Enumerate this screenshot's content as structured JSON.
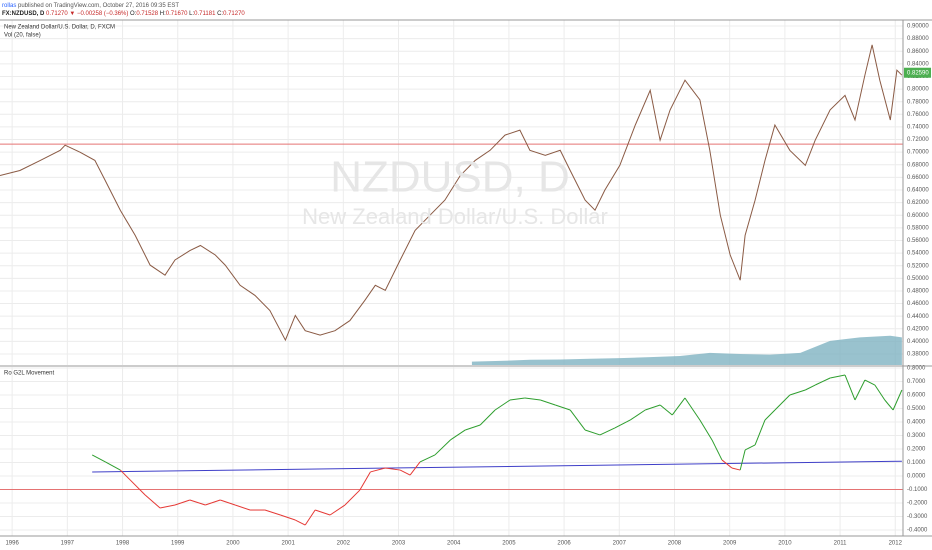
{
  "header": {
    "author": "rollas",
    "published": " published on TradingView.com, October 27, 2016 09:35 EST",
    "symbol": "FX:NZDUSD, D",
    "last": "0.71270",
    "change": "▼ −0.00258 (−0.36%)",
    "ohlc": [
      {
        "label": "O:",
        "value": "0.71528"
      },
      {
        "label": "H:",
        "value": "0.71670"
      },
      {
        "label": "L:",
        "value": "0.71181"
      },
      {
        "label": "C:",
        "value": "0.71270"
      }
    ]
  },
  "watermark": {
    "symbol": "NZDUSD, D",
    "description": "New Zealand Dollar/U.S. Dollar"
  },
  "chart_data": [
    {
      "type": "line",
      "xlim": [
        1995.78,
        2012.14
      ],
      "ylim": [
        0.3626,
        0.9095
      ],
      "yticks": [
        {
          "value": 0.9,
          "label": "0.90000"
        },
        {
          "value": 0.88,
          "label": "0.88000"
        },
        {
          "value": 0.86,
          "label": "0.86000"
        },
        {
          "value": 0.84,
          "label": "0.84000"
        },
        {
          "value": 0.82,
          "label": "0.82000"
        },
        {
          "value": 0.8,
          "label": "0.80000"
        },
        {
          "value": 0.78,
          "label": "0.78000"
        },
        {
          "value": 0.76,
          "label": "0.76000"
        },
        {
          "value": 0.74,
          "label": "0.74000"
        },
        {
          "value": 0.72,
          "label": "0.72000"
        },
        {
          "value": 0.7,
          "label": "0.70000"
        },
        {
          "value": 0.68,
          "label": "0.68000"
        },
        {
          "value": 0.66,
          "label": "0.66000"
        },
        {
          "value": 0.64,
          "label": "0.64000"
        },
        {
          "value": 0.62,
          "label": "0.62000"
        },
        {
          "value": 0.6,
          "label": "0.60000"
        },
        {
          "value": 0.58,
          "label": "0.58000"
        },
        {
          "value": 0.56,
          "label": "0.56000"
        },
        {
          "value": 0.54,
          "label": "0.54000"
        },
        {
          "value": 0.52,
          "label": "0.52000"
        },
        {
          "value": 0.5,
          "label": "0.50000"
        },
        {
          "value": 0.48,
          "label": "0.48000"
        },
        {
          "value": 0.46,
          "label": "0.46000"
        },
        {
          "value": 0.44,
          "label": "0.44000"
        },
        {
          "value": 0.42,
          "label": "0.42000"
        },
        {
          "value": 0.4,
          "label": "0.40000"
        },
        {
          "value": 0.38,
          "label": "0.38000"
        }
      ],
      "grid": true,
      "series": [
        {
          "name": "New Zealand Dollar/U.S. Dollar, D, FXCM",
          "color": "#8a5a44",
          "x": [
            1995.78,
            1996.14,
            1996.51,
            1996.87,
            1996.96,
            1997.23,
            1997.5,
            1997.68,
            1997.96,
            1998.23,
            1998.5,
            1998.77,
            1998.95,
            1999.22,
            1999.41,
            1999.68,
            1999.86,
            2000.13,
            2000.4,
            2000.67,
            2000.95,
            2001.13,
            2001.31,
            2001.58,
            2001.85,
            2002.12,
            2002.39,
            2002.58,
            2002.76,
            2003.03,
            2003.3,
            2003.57,
            2003.84,
            2004.12,
            2004.39,
            2004.66,
            2004.93,
            2005.2,
            2005.38,
            2005.66,
            2005.93,
            2006.11,
            2006.38,
            2006.56,
            2006.74,
            2007.01,
            2007.29,
            2007.56,
            2007.74,
            2007.92,
            2008.19,
            2008.46,
            2008.64,
            2008.83,
            2009.01,
            2009.19,
            2009.28,
            2009.46,
            2009.64,
            2009.82,
            2010.09,
            2010.37,
            2010.55,
            2010.82,
            2011.09,
            2011.27,
            2011.45,
            2011.58,
            2011.72,
            2011.91,
            2012.03,
            2012.12
          ],
          "values": [
            0.663,
            0.671,
            0.687,
            0.703,
            0.711,
            0.7,
            0.687,
            0.656,
            0.608,
            0.568,
            0.521,
            0.505,
            0.529,
            0.544,
            0.552,
            0.537,
            0.521,
            0.489,
            0.473,
            0.449,
            0.402,
            0.441,
            0.417,
            0.41,
            0.417,
            0.433,
            0.465,
            0.489,
            0.481,
            0.529,
            0.576,
            0.6,
            0.624,
            0.663,
            0.687,
            0.703,
            0.727,
            0.735,
            0.703,
            0.695,
            0.703,
            0.671,
            0.624,
            0.608,
            0.64,
            0.679,
            0.743,
            0.798,
            0.719,
            0.767,
            0.814,
            0.783,
            0.703,
            0.6,
            0.537,
            0.497,
            0.568,
            0.624,
            0.687,
            0.743,
            0.703,
            0.679,
            0.719,
            0.767,
            0.79,
            0.751,
            0.822,
            0.87,
            0.814,
            0.751,
            0.83,
            0.822
          ]
        }
      ],
      "volume": {
        "name": "Vol (20, false)",
        "color": "#7fb3c2",
        "ylim": [
          0,
          100
        ],
        "x": [
          2004.33,
          2004.84,
          2005.38,
          2005.93,
          2006.47,
          2007.01,
          2007.56,
          2008.1,
          2008.64,
          2009.19,
          2009.73,
          2010.28,
          2010.82,
          2011.36,
          2011.91,
          2012.12
        ],
        "values": [
          1,
          1.2,
          1.5,
          1.6,
          1.8,
          2,
          2.3,
          2.6,
          3.5,
          3.2,
          3,
          3.5,
          7,
          8,
          8.5,
          8
        ]
      },
      "price_line": {
        "value": 0.7127,
        "color": "#e57373"
      },
      "current_price": {
        "value": 0.8259,
        "label": "0.82590",
        "color": "#4caf50"
      }
    },
    {
      "type": "line",
      "xlim": [
        1995.78,
        2012.14
      ],
      "ylim": [
        -0.4444,
        0.8074
      ],
      "xticks": [
        1996,
        1997,
        1998,
        1999,
        2000,
        2001,
        2002,
        2003,
        2004,
        2005,
        2006,
        2007,
        2008,
        2009,
        2010,
        2011,
        2012
      ],
      "yticks": [
        {
          "value": 0.8,
          "label": "0.8000"
        },
        {
          "value": 0.7,
          "label": "0.7000"
        },
        {
          "value": 0.6,
          "label": "0.6000"
        },
        {
          "value": 0.5,
          "label": "0.5000"
        },
        {
          "value": 0.4,
          "label": "0.4000"
        },
        {
          "value": 0.3,
          "label": "0.3000"
        },
        {
          "value": 0.2,
          "label": "0.2000"
        },
        {
          "value": 0.1,
          "label": "0.1000"
        },
        {
          "value": 0,
          "label": "0.0000"
        },
        {
          "value": -0.1,
          "label": "-0.1000"
        },
        {
          "value": -0.2,
          "label": "-0.2000"
        },
        {
          "value": -0.3,
          "label": "-0.3000"
        },
        {
          "value": -0.4,
          "label": "-0.4000"
        }
      ],
      "grid": true,
      "color_above": "#2e9e2e",
      "color_below": "#e53935",
      "series": [
        {
          "name": "Ro G2L Movement",
          "x": [
            1997.45,
            1997.69,
            1997.96,
            1998.14,
            1998.41,
            1998.68,
            1998.95,
            1999.22,
            1999.5,
            1999.77,
            2000.04,
            2000.31,
            2000.58,
            2000.86,
            2001.13,
            2001.31,
            2001.49,
            2001.76,
            2002.03,
            2002.3,
            2002.49,
            2002.76,
            2003.03,
            2003.21,
            2003.39,
            2003.66,
            2003.94,
            2004.21,
            2004.48,
            2004.75,
            2005.02,
            2005.29,
            2005.57,
            2005.84,
            2006.11,
            2006.38,
            2006.65,
            2006.92,
            2007.2,
            2007.47,
            2007.74,
            2007.96,
            2008.19,
            2008.46,
            2008.68,
            2008.86,
            2009.04,
            2009.19,
            2009.28,
            2009.46,
            2009.64,
            2009.82,
            2010.09,
            2010.37,
            2010.55,
            2010.82,
            2011.09,
            2011.27,
            2011.45,
            2011.63,
            2011.81,
            2011.96,
            2012.12
          ],
          "values": [
            0.156,
            0.104,
            0.044,
            -0.03,
            -0.141,
            -0.237,
            -0.215,
            -0.178,
            -0.215,
            -0.178,
            -0.215,
            -0.252,
            -0.252,
            -0.289,
            -0.326,
            -0.363,
            -0.252,
            -0.289,
            -0.215,
            -0.104,
            0.03,
            0.059,
            0.044,
            0.007,
            0.104,
            0.156,
            0.267,
            0.341,
            0.378,
            0.489,
            0.563,
            0.578,
            0.563,
            0.526,
            0.489,
            0.341,
            0.304,
            0.356,
            0.415,
            0.489,
            0.526,
            0.452,
            0.578,
            0.415,
            0.267,
            0.119,
            0.059,
            0.044,
            0.193,
            0.23,
            0.415,
            0.489,
            0.6,
            0.637,
            0.674,
            0.726,
            0.748,
            0.563,
            0.711,
            0.674,
            0.563,
            0.489,
            0.637
          ]
        },
        {
          "color": "#3f3fc8",
          "x": [
            1997.45,
            2012.12
          ],
          "values": [
            0.03,
            0.11
          ]
        }
      ],
      "level": {
        "value": -0.1,
        "color": "#e57373"
      }
    }
  ]
}
